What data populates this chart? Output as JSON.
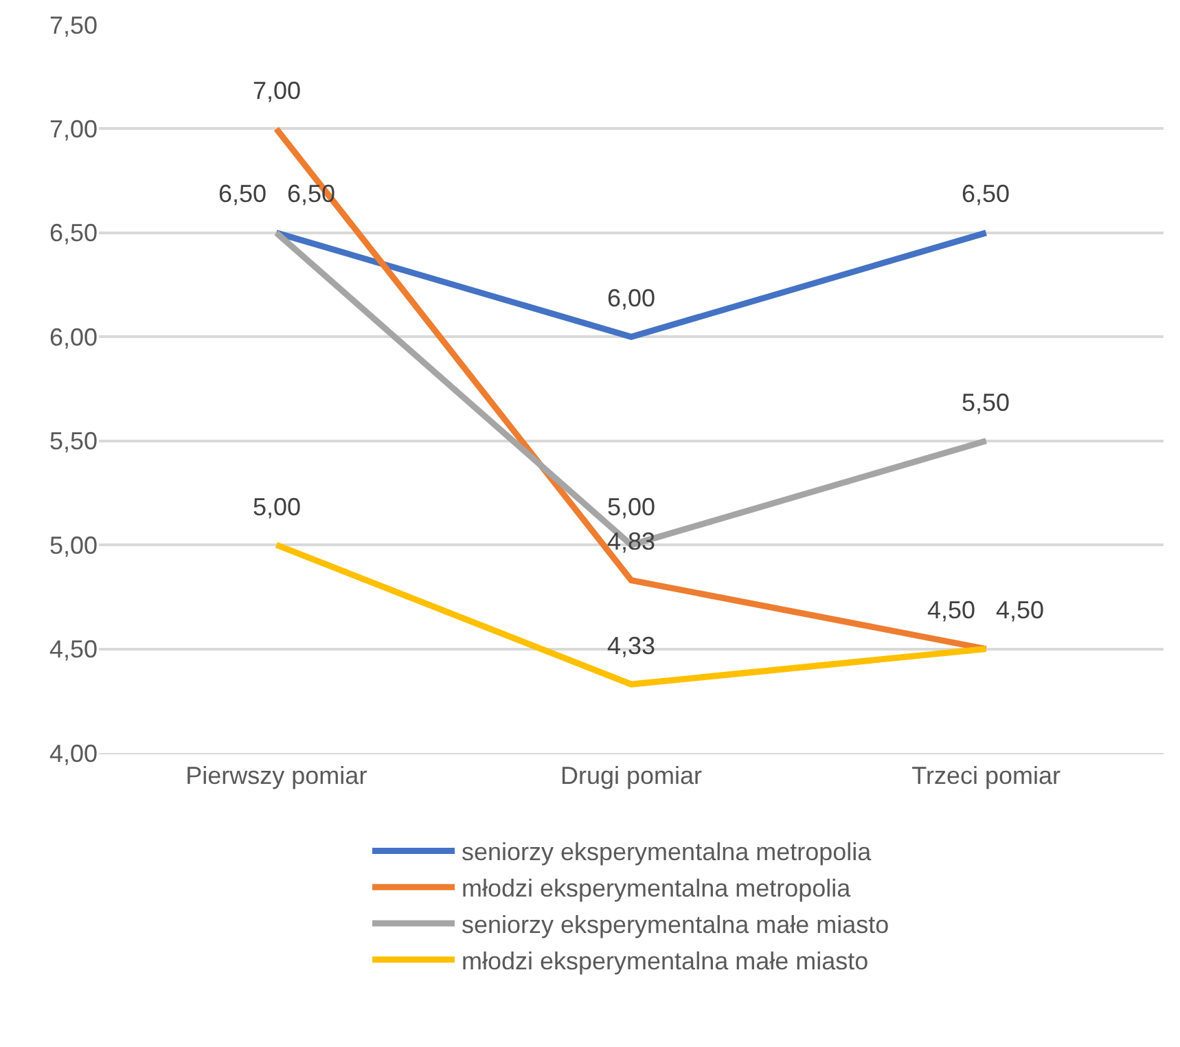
{
  "chart_data": {
    "type": "line",
    "categories": [
      "Pierwszy pomiar",
      "Drugi pomiar",
      "Trzeci pomiar"
    ],
    "series": [
      {
        "name": "seniorzy eksperymentalna metropolia",
        "color": "#4472c4",
        "values": [
          6.5,
          6.0,
          6.5
        ],
        "value_labels": [
          "6,50",
          "6,00",
          "6,50"
        ]
      },
      {
        "name": "młodzi eksperymentalna metropolia",
        "color": "#ed7d31",
        "values": [
          7.0,
          4.83,
          4.5
        ],
        "value_labels": [
          "7,00",
          "4,83",
          "4,50"
        ]
      },
      {
        "name": "seniorzy eksperymentalna małe miasto",
        "color": "#a5a5a5",
        "values": [
          6.5,
          5.0,
          5.5
        ],
        "value_labels": [
          "6,50",
          "5,00",
          "5,50"
        ]
      },
      {
        "name": "młodzi eksperymentalna małe miasto",
        "color": "#ffc000",
        "values": [
          5.0,
          4.33,
          4.5
        ],
        "value_labels": [
          "5,00",
          "4,33",
          "4,50"
        ]
      }
    ],
    "ylim": [
      4,
      7.5
    ],
    "yticks": [
      {
        "value": 4,
        "label": "4,00"
      },
      {
        "value": 4.5,
        "label": "4,50"
      },
      {
        "value": 5,
        "label": "5,00"
      },
      {
        "value": 5.5,
        "label": "5,50"
      },
      {
        "value": 6,
        "label": "6,00"
      },
      {
        "value": 6.5,
        "label": "6,50"
      },
      {
        "value": 7,
        "label": "7,00"
      },
      {
        "value": 7.5,
        "label": "7,50"
      }
    ],
    "grid": "y",
    "legend": "bottom",
    "marker": "none",
    "line_style": "solid"
  }
}
